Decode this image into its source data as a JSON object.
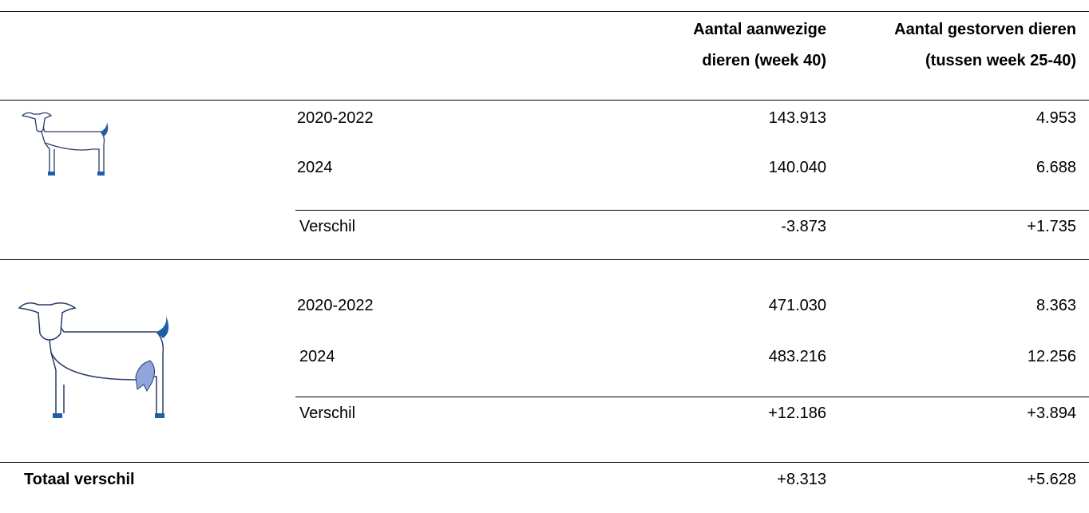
{
  "table": {
    "header": [
      "Aantal aanwezige",
      "dieren (week 40)",
      "Aantal gestorven dieren",
      "(tussen week 25-40)"
    ],
    "groups": [
      {
        "rows": [
          [
            "2020-2022",
            "143.913",
            "4.953"
          ],
          [
            "2024",
            "140.040",
            "6.688"
          ],
          [
            "Verschil",
            "-3.873",
            "+1.735"
          ]
        ]
      },
      {
        "rows": [
          [
            "2020-2022",
            "471.030",
            "8.363"
          ],
          [
            "2024",
            "483.216",
            "12.256"
          ],
          [
            "Verschil",
            "+12.186",
            "+3.894"
          ]
        ]
      }
    ],
    "total": [
      "Totaal verschil",
      "+8.313",
      "+5.628"
    ]
  }
}
